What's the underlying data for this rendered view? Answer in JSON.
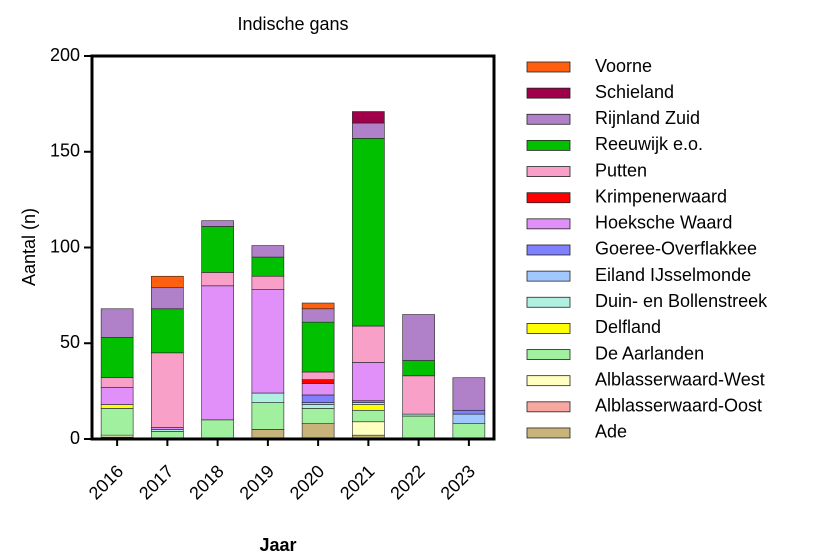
{
  "chart_data": {
    "type": "stacked_bar",
    "title": "Indische gans",
    "xlabel": "Jaar",
    "ylabel": "Aantal (n)",
    "categories": [
      "2016",
      "2017",
      "2018",
      "2019",
      "2020",
      "2021",
      "2022",
      "2023"
    ],
    "ylim": [
      0,
      200
    ],
    "yticks": [
      0,
      50,
      100,
      150,
      200
    ],
    "series": [
      {
        "name": "Ade",
        "color": "#c8b47a",
        "values": [
          1,
          0,
          0,
          5,
          8,
          2,
          0,
          0
        ]
      },
      {
        "name": "Alblasserwaard-Oost",
        "color": "#f8a8a0",
        "values": [
          0,
          0,
          0,
          0,
          0,
          0,
          0,
          0
        ]
      },
      {
        "name": "Alblasserwaard-West",
        "color": "#ffffc0",
        "values": [
          1,
          0,
          0,
          0,
          0,
          7,
          0,
          0
        ]
      },
      {
        "name": "De Aarlanden",
        "color": "#a0f0a0",
        "values": [
          14,
          4,
          10,
          14,
          8,
          6,
          12,
          8
        ]
      },
      {
        "name": "Delfland",
        "color": "#ffff00",
        "values": [
          2,
          0,
          0,
          0,
          0,
          3,
          0,
          0
        ]
      },
      {
        "name": "Duin- en Bollenstreek",
        "color": "#b0f0e0",
        "values": [
          0,
          1,
          0,
          5,
          2,
          1,
          1,
          0
        ]
      },
      {
        "name": "Eiland IJsselmonde",
        "color": "#a0c8ff",
        "values": [
          0,
          0,
          0,
          0,
          1,
          0,
          0,
          5
        ]
      },
      {
        "name": "Goeree-Overflakkee",
        "color": "#8080ff",
        "values": [
          0,
          0,
          0,
          0,
          4,
          1,
          0,
          2
        ]
      },
      {
        "name": "Hoeksche Waard",
        "color": "#e090f8",
        "values": [
          9,
          1,
          70,
          54,
          6,
          20,
          0,
          0
        ]
      },
      {
        "name": "Krimpenerwaard",
        "color": "#ff0000",
        "values": [
          0,
          0,
          0,
          0,
          2,
          0,
          0,
          0
        ]
      },
      {
        "name": "Putten",
        "color": "#f8a0c8",
        "values": [
          5,
          39,
          7,
          7,
          4,
          19,
          20,
          0
        ]
      },
      {
        "name": "Reeuwijk e.o.",
        "color": "#00c000",
        "values": [
          21,
          23,
          24,
          10,
          26,
          98,
          8,
          0
        ]
      },
      {
        "name": "Rijnland Zuid",
        "color": "#b080c8",
        "values": [
          15,
          11,
          3,
          6,
          7,
          8,
          24,
          17
        ]
      },
      {
        "name": "Schieland",
        "color": "#a0004a",
        "values": [
          0,
          0,
          0,
          0,
          0,
          6,
          0,
          0
        ]
      },
      {
        "name": "Voorne",
        "color": "#ff6010",
        "values": [
          0,
          6,
          0,
          0,
          3,
          0,
          0,
          0
        ]
      }
    ]
  }
}
